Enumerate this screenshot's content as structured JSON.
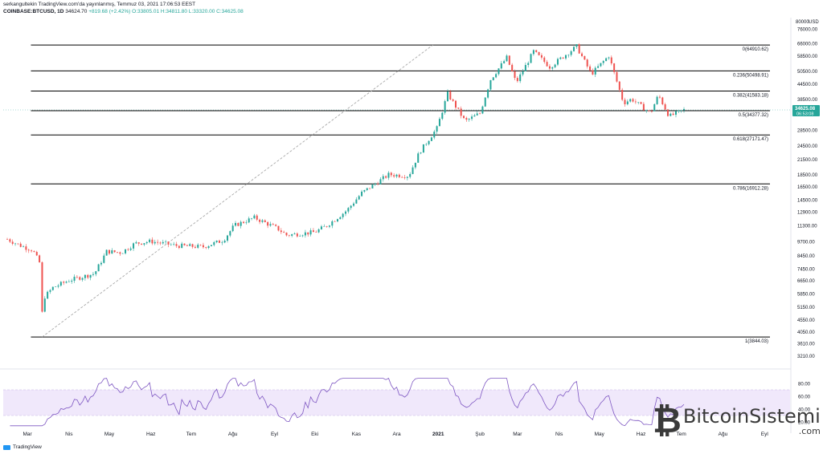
{
  "header": {
    "line1": "serkangultekin TradingView.com'da yayınlanmış, Temmuz 03, 2021 17:06:53 EEST",
    "symbol": "COINBASE:BTCUSD, 1D",
    "price": "34624.70",
    "change": "+819.68 (+2.42%)",
    "ohlc": "O:33805.01 H:34811.80 L:33320.00 C:34625.08"
  },
  "branding": {
    "tradingview": "TradingView",
    "watermark": "BitcoinSistemi",
    "watermark_tld": ".com"
  },
  "colors": {
    "up": "#26a69a",
    "down": "#ef5350",
    "fib_line": "#000000",
    "rsi_line": "#7e57c2",
    "rsi_band": "#f0e8fb",
    "price_tag": "#26a69a"
  },
  "chart_data": [
    {
      "type": "candlestick",
      "symbol": "COINBASE:BTCUSD",
      "interval": "1D",
      "scale": "log",
      "y_axis_unit": "USD",
      "y_ticks": [
        80000,
        76000,
        66000,
        58500,
        50500,
        44500,
        38500,
        33500,
        28500,
        24500,
        21500,
        18500,
        16500,
        14500,
        12900,
        11300,
        9700,
        8450,
        7450,
        6650,
        5850,
        5150,
        4550,
        4050,
        3610,
        3210
      ],
      "y_tick_labels": [
        "80000.00",
        "76000.00",
        "66000.00",
        "58500.00",
        "50500.00",
        "44500.00",
        "38500.00",
        "33500.00",
        "28500.00",
        "24500.00",
        "21500.00",
        "18500.00",
        "16500.00",
        "14500.00",
        "12900.00",
        "11300.00",
        "9700.00",
        "8450.00",
        "7450.00",
        "6650.00",
        "5850.00",
        "5150.00",
        "4550.00",
        "4050.00",
        "3610.00",
        "3210.00"
      ],
      "x_labels": [
        "Mar",
        "Nis",
        "May",
        "Haz",
        "Tem",
        "Ağu",
        "Eyl",
        "Eki",
        "Kas",
        "Ara",
        "2021",
        "Şub",
        "Mar",
        "Nis",
        "May",
        "Haz",
        "Tem",
        "Ağu",
        "Eyl"
      ],
      "fib_levels": [
        {
          "label": "0(64910.62)",
          "value": 64910.62
        },
        {
          "label": "0.236(50498.91)",
          "value": 50498.91
        },
        {
          "label": "0.382(41583.18)",
          "value": 41583.18
        },
        {
          "label": "0.5(34377.32)",
          "value": 34377.32
        },
        {
          "label": "0.618(27171.47)",
          "value": 27171.47
        },
        {
          "label": "0.786(16912.28)",
          "value": 16912.28
        },
        {
          "label": "1(3844.03)",
          "value": 3844.03
        }
      ],
      "last_price": "34625.08",
      "countdown": "06:53:08",
      "close_path": [
        [
          "2020-02-15",
          9900
        ],
        [
          "2020-02-25",
          9300
        ],
        [
          "2020-03-05",
          8900
        ],
        [
          "2020-03-10",
          7900
        ],
        [
          "2020-03-12",
          4850
        ],
        [
          "2020-03-13",
          5600
        ],
        [
          "2020-03-20",
          6200
        ],
        [
          "2020-04-01",
          6650
        ],
        [
          "2020-04-20",
          7100
        ],
        [
          "2020-04-29",
          8800
        ],
        [
          "2020-05-10",
          8700
        ],
        [
          "2020-05-20",
          9500
        ],
        [
          "2020-06-01",
          9700
        ],
        [
          "2020-06-20",
          9300
        ],
        [
          "2020-07-10",
          9200
        ],
        [
          "2020-07-25",
          9800
        ],
        [
          "2020-08-02",
          11300
        ],
        [
          "2020-08-17",
          12200
        ],
        [
          "2020-09-03",
          11000
        ],
        [
          "2020-09-10",
          10300
        ],
        [
          "2020-10-01",
          10600
        ],
        [
          "2020-10-10",
          11300
        ],
        [
          "2020-10-25",
          13100
        ],
        [
          "2020-11-05",
          15500
        ],
        [
          "2020-11-25",
          18500
        ],
        [
          "2020-12-10",
          18300
        ],
        [
          "2020-12-18",
          23000
        ],
        [
          "2020-12-31",
          29000
        ],
        [
          "2021-01-08",
          40500
        ],
        [
          "2021-01-21",
          31000
        ],
        [
          "2021-02-01",
          33500
        ],
        [
          "2021-02-09",
          46500
        ],
        [
          "2021-02-21",
          57500
        ],
        [
          "2021-02-28",
          45000
        ],
        [
          "2021-03-13",
          61000
        ],
        [
          "2021-03-25",
          52500
        ],
        [
          "2021-04-14",
          64000
        ],
        [
          "2021-04-25",
          49000
        ],
        [
          "2021-05-08",
          58500
        ],
        [
          "2021-05-12",
          49500
        ],
        [
          "2021-05-19",
          37000
        ],
        [
          "2021-05-25",
          38500
        ],
        [
          "2021-06-08",
          33500
        ],
        [
          "2021-06-14",
          40000
        ],
        [
          "2021-06-22",
          32500
        ],
        [
          "2021-07-03",
          34625
        ]
      ]
    },
    {
      "type": "line",
      "name": "RSI",
      "y_ticks": [
        80,
        60,
        40,
        20
      ],
      "y_tick_labels": [
        "80.00",
        "60.00",
        "40.00",
        "20.00"
      ],
      "band": [
        30,
        70
      ],
      "last_value": 45
    }
  ]
}
